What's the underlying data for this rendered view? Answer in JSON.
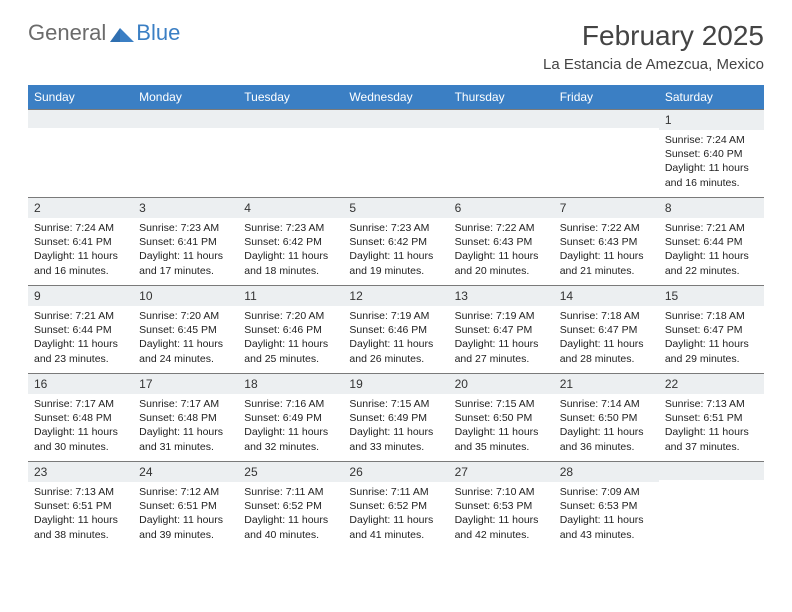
{
  "brand": {
    "part1": "General",
    "part2": "Blue"
  },
  "title": "February 2025",
  "location": "La Estancia de Amezcua, Mexico",
  "colors": {
    "header_bg": "#3b7fc4",
    "daynum_bg": "#eceff1",
    "text": "#333333",
    "border": "#7a7a7a"
  },
  "day_headers": [
    "Sunday",
    "Monday",
    "Tuesday",
    "Wednesday",
    "Thursday",
    "Friday",
    "Saturday"
  ],
  "weeks": [
    [
      {
        "n": "",
        "sr": "",
        "ss": "",
        "dl": ""
      },
      {
        "n": "",
        "sr": "",
        "ss": "",
        "dl": ""
      },
      {
        "n": "",
        "sr": "",
        "ss": "",
        "dl": ""
      },
      {
        "n": "",
        "sr": "",
        "ss": "",
        "dl": ""
      },
      {
        "n": "",
        "sr": "",
        "ss": "",
        "dl": ""
      },
      {
        "n": "",
        "sr": "",
        "ss": "",
        "dl": ""
      },
      {
        "n": "1",
        "sr": "Sunrise: 7:24 AM",
        "ss": "Sunset: 6:40 PM",
        "dl": "Daylight: 11 hours and 16 minutes."
      }
    ],
    [
      {
        "n": "2",
        "sr": "Sunrise: 7:24 AM",
        "ss": "Sunset: 6:41 PM",
        "dl": "Daylight: 11 hours and 16 minutes."
      },
      {
        "n": "3",
        "sr": "Sunrise: 7:23 AM",
        "ss": "Sunset: 6:41 PM",
        "dl": "Daylight: 11 hours and 17 minutes."
      },
      {
        "n": "4",
        "sr": "Sunrise: 7:23 AM",
        "ss": "Sunset: 6:42 PM",
        "dl": "Daylight: 11 hours and 18 minutes."
      },
      {
        "n": "5",
        "sr": "Sunrise: 7:23 AM",
        "ss": "Sunset: 6:42 PM",
        "dl": "Daylight: 11 hours and 19 minutes."
      },
      {
        "n": "6",
        "sr": "Sunrise: 7:22 AM",
        "ss": "Sunset: 6:43 PM",
        "dl": "Daylight: 11 hours and 20 minutes."
      },
      {
        "n": "7",
        "sr": "Sunrise: 7:22 AM",
        "ss": "Sunset: 6:43 PM",
        "dl": "Daylight: 11 hours and 21 minutes."
      },
      {
        "n": "8",
        "sr": "Sunrise: 7:21 AM",
        "ss": "Sunset: 6:44 PM",
        "dl": "Daylight: 11 hours and 22 minutes."
      }
    ],
    [
      {
        "n": "9",
        "sr": "Sunrise: 7:21 AM",
        "ss": "Sunset: 6:44 PM",
        "dl": "Daylight: 11 hours and 23 minutes."
      },
      {
        "n": "10",
        "sr": "Sunrise: 7:20 AM",
        "ss": "Sunset: 6:45 PM",
        "dl": "Daylight: 11 hours and 24 minutes."
      },
      {
        "n": "11",
        "sr": "Sunrise: 7:20 AM",
        "ss": "Sunset: 6:46 PM",
        "dl": "Daylight: 11 hours and 25 minutes."
      },
      {
        "n": "12",
        "sr": "Sunrise: 7:19 AM",
        "ss": "Sunset: 6:46 PM",
        "dl": "Daylight: 11 hours and 26 minutes."
      },
      {
        "n": "13",
        "sr": "Sunrise: 7:19 AM",
        "ss": "Sunset: 6:47 PM",
        "dl": "Daylight: 11 hours and 27 minutes."
      },
      {
        "n": "14",
        "sr": "Sunrise: 7:18 AM",
        "ss": "Sunset: 6:47 PM",
        "dl": "Daylight: 11 hours and 28 minutes."
      },
      {
        "n": "15",
        "sr": "Sunrise: 7:18 AM",
        "ss": "Sunset: 6:47 PM",
        "dl": "Daylight: 11 hours and 29 minutes."
      }
    ],
    [
      {
        "n": "16",
        "sr": "Sunrise: 7:17 AM",
        "ss": "Sunset: 6:48 PM",
        "dl": "Daylight: 11 hours and 30 minutes."
      },
      {
        "n": "17",
        "sr": "Sunrise: 7:17 AM",
        "ss": "Sunset: 6:48 PM",
        "dl": "Daylight: 11 hours and 31 minutes."
      },
      {
        "n": "18",
        "sr": "Sunrise: 7:16 AM",
        "ss": "Sunset: 6:49 PM",
        "dl": "Daylight: 11 hours and 32 minutes."
      },
      {
        "n": "19",
        "sr": "Sunrise: 7:15 AM",
        "ss": "Sunset: 6:49 PM",
        "dl": "Daylight: 11 hours and 33 minutes."
      },
      {
        "n": "20",
        "sr": "Sunrise: 7:15 AM",
        "ss": "Sunset: 6:50 PM",
        "dl": "Daylight: 11 hours and 35 minutes."
      },
      {
        "n": "21",
        "sr": "Sunrise: 7:14 AM",
        "ss": "Sunset: 6:50 PM",
        "dl": "Daylight: 11 hours and 36 minutes."
      },
      {
        "n": "22",
        "sr": "Sunrise: 7:13 AM",
        "ss": "Sunset: 6:51 PM",
        "dl": "Daylight: 11 hours and 37 minutes."
      }
    ],
    [
      {
        "n": "23",
        "sr": "Sunrise: 7:13 AM",
        "ss": "Sunset: 6:51 PM",
        "dl": "Daylight: 11 hours and 38 minutes."
      },
      {
        "n": "24",
        "sr": "Sunrise: 7:12 AM",
        "ss": "Sunset: 6:51 PM",
        "dl": "Daylight: 11 hours and 39 minutes."
      },
      {
        "n": "25",
        "sr": "Sunrise: 7:11 AM",
        "ss": "Sunset: 6:52 PM",
        "dl": "Daylight: 11 hours and 40 minutes."
      },
      {
        "n": "26",
        "sr": "Sunrise: 7:11 AM",
        "ss": "Sunset: 6:52 PM",
        "dl": "Daylight: 11 hours and 41 minutes."
      },
      {
        "n": "27",
        "sr": "Sunrise: 7:10 AM",
        "ss": "Sunset: 6:53 PM",
        "dl": "Daylight: 11 hours and 42 minutes."
      },
      {
        "n": "28",
        "sr": "Sunrise: 7:09 AM",
        "ss": "Sunset: 6:53 PM",
        "dl": "Daylight: 11 hours and 43 minutes."
      },
      {
        "n": "",
        "sr": "",
        "ss": "",
        "dl": ""
      }
    ]
  ]
}
